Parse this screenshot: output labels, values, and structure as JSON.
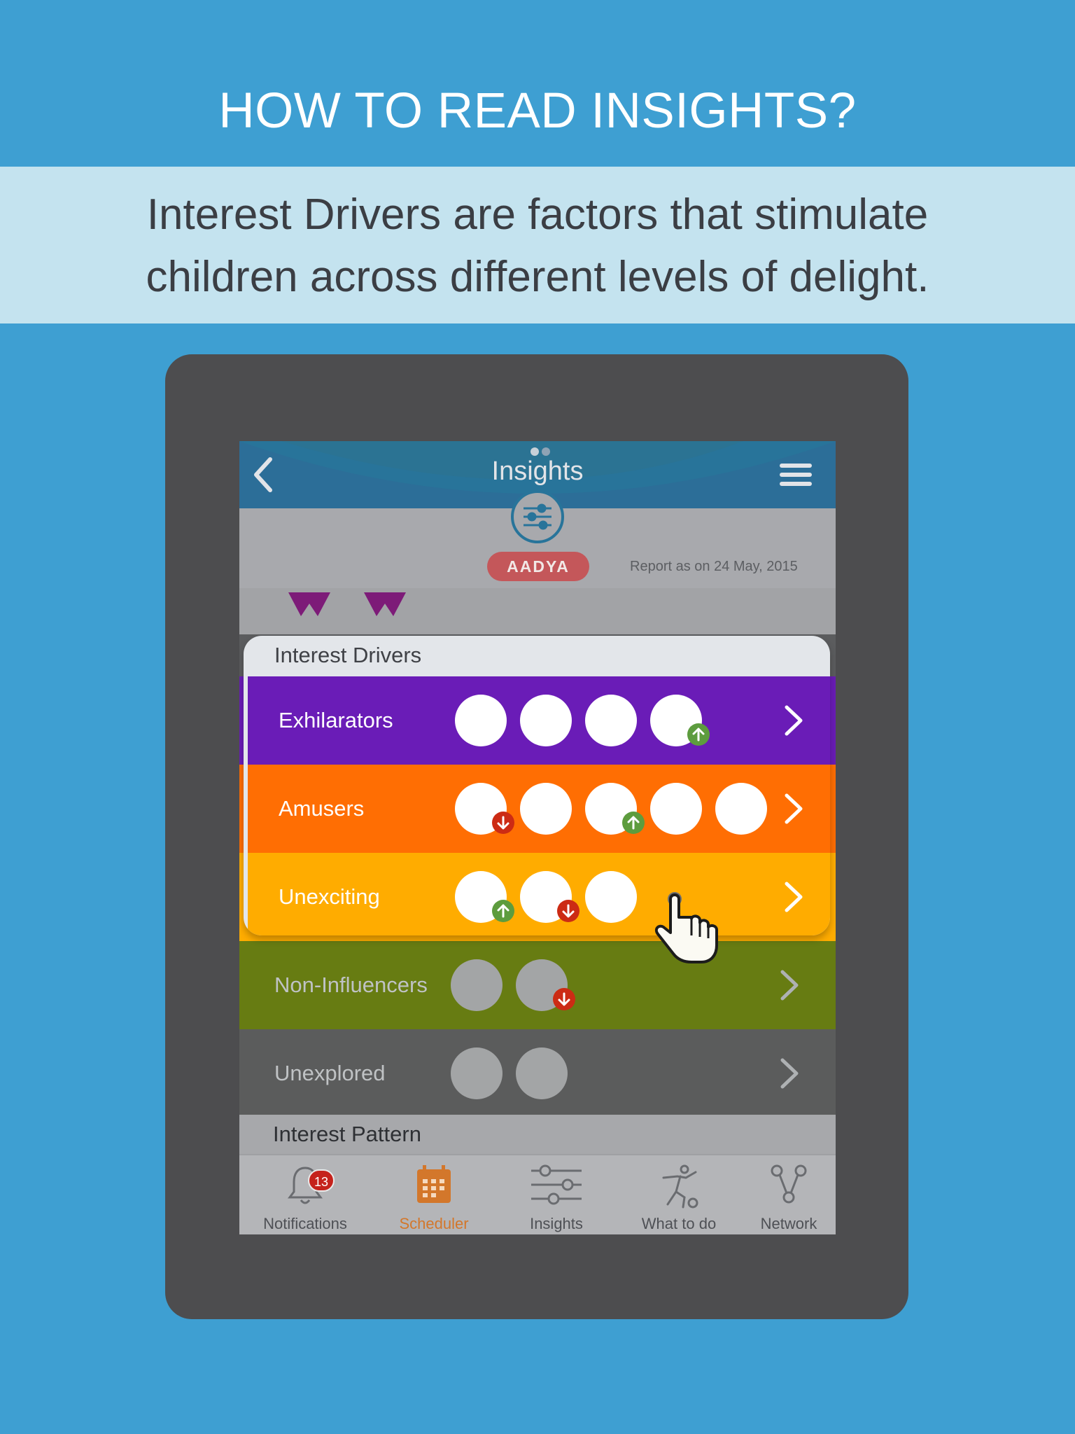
{
  "headline": "HOW TO READ INSIGHTS?",
  "subtext_line1": "Interest Drivers are factors that stimulate",
  "subtext_line2": "children across different levels of delight.",
  "app": {
    "title": "Insights",
    "back_icon": "chevron-left-icon",
    "menu_icon": "hamburger-menu-icon",
    "profile": {
      "name": "AADYA",
      "report_date": "Report as on 24 May, 2015",
      "badge_icon": "sliders-icon"
    },
    "interest_drivers": {
      "heading": "Interest Drivers",
      "rows": [
        {
          "label": "Exhilarators",
          "color": "#6a1cb7",
          "circle_count": 4,
          "dimmed": false,
          "arrows": [
            null,
            null,
            null,
            "up"
          ]
        },
        {
          "label": "Amusers",
          "color": "#ff6e03",
          "circle_count": 5,
          "dimmed": false,
          "arrows": [
            "down",
            null,
            "up",
            null,
            null
          ]
        },
        {
          "label": "Unexciting",
          "color": "#ffac00",
          "circle_count": 3,
          "dimmed": false,
          "arrows": [
            "up",
            "down",
            null
          ]
        },
        {
          "label": "Non-Influencers",
          "color": "#677c12",
          "circle_count": 2,
          "dimmed": true,
          "arrows": [
            null,
            "down"
          ]
        },
        {
          "label": "Unexplored",
          "color": "#5b5c5c",
          "circle_count": 2,
          "dimmed": true,
          "arrows": [
            null,
            null
          ]
        }
      ]
    },
    "interest_pattern": "Interest Pattern",
    "tabs": [
      {
        "label": "Notifications",
        "icon": "bell-icon",
        "count": "13",
        "active": false
      },
      {
        "label": "Scheduler",
        "icon": "calendar-icon",
        "active": true
      },
      {
        "label": "Insights",
        "icon": "sliders-icon",
        "active": false
      },
      {
        "label": "What to do",
        "icon": "activity-figure-icon",
        "active": false
      },
      {
        "label": "Network",
        "icon": "network-icon",
        "active": false
      }
    ],
    "colors": {
      "accent_active_tab": "#d3772b",
      "arrow_up": "#5d9c3e",
      "arrow_down": "#cc2b14"
    }
  }
}
